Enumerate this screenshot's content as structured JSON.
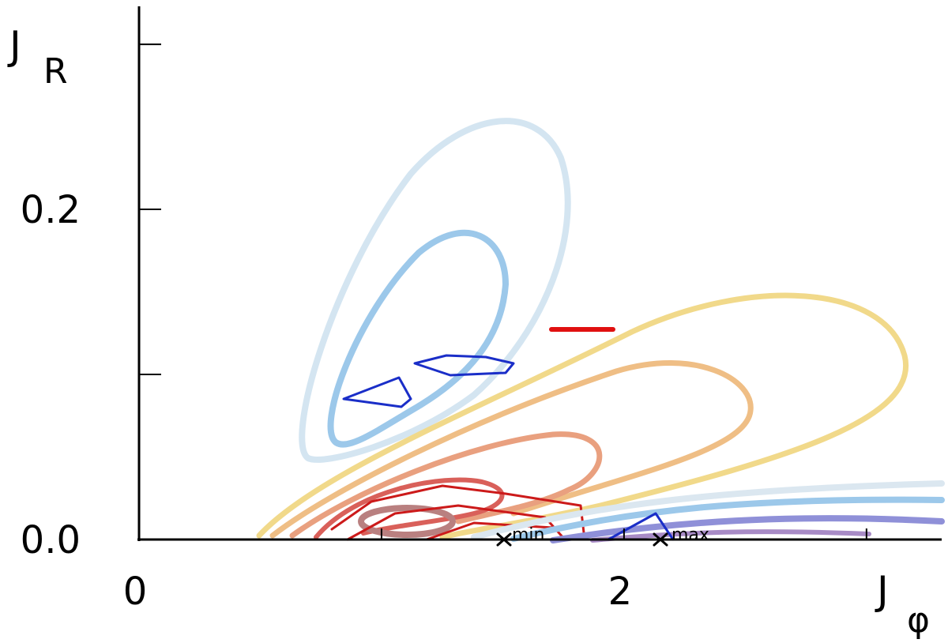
{
  "chart_data": {
    "type": "contour",
    "xlabel": "J",
    "xlabel_sub": "φ",
    "ylabel": "J",
    "ylabel_sub": "R",
    "xlim": [
      0,
      3.31
    ],
    "ylim": [
      0,
      0.323
    ],
    "xticks": [
      0,
      2
    ],
    "xticks_minor": [
      1,
      3
    ],
    "yticks": [
      {
        "value": 0,
        "label": "0.0"
      },
      {
        "value": 0.2,
        "label": "0.2"
      }
    ],
    "yticks_minor": [
      0.1,
      0.3
    ],
    "annotations": [
      "min",
      "max"
    ]
  }
}
